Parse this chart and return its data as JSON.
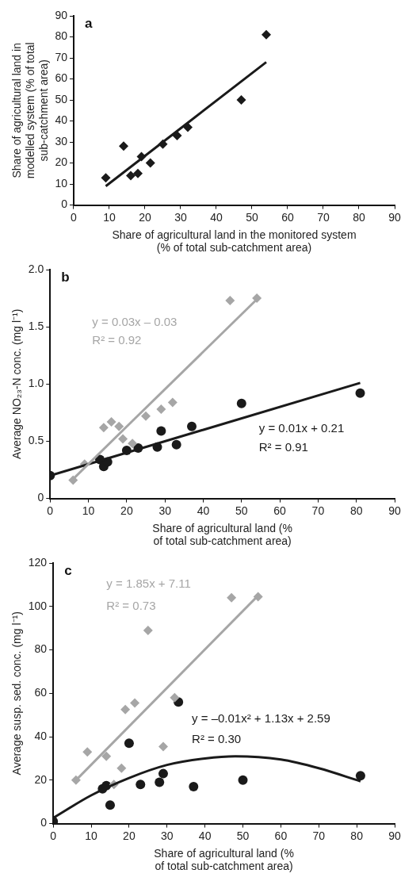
{
  "chart_data": [
    {
      "type": "scatter",
      "title": "a",
      "xlabel": "Share of agricultural land in the monitored system (% of total sub-catchment area)",
      "ylabel": "Share of agricultural land in modelled system (% of total sub-catchment area)",
      "xlim": [
        0,
        90
      ],
      "xticks": [
        0,
        10,
        20,
        30,
        40,
        50,
        60,
        70,
        80,
        90
      ],
      "ylim": [
        0,
        90
      ],
      "yticks": [
        0,
        10,
        20,
        30,
        40,
        50,
        60,
        70,
        80,
        90
      ],
      "grid": false,
      "legend": false,
      "series": [
        {
          "marker": "diamond",
          "color": "#1a1a1a",
          "x": [
            9,
            14,
            16,
            18,
            19,
            21.5,
            25,
            29,
            32,
            47,
            54
          ],
          "values": [
            13,
            28,
            14,
            15,
            23,
            20,
            29,
            33,
            37,
            50,
            81
          ]
        },
        {
          "type": "line",
          "marker": "none",
          "color": "#1a1a1a",
          "x": [
            9,
            54
          ],
          "values": [
            9,
            68
          ]
        }
      ]
    },
    {
      "type": "scatter",
      "title": "b",
      "xlabel": "Share of agricultural land (% of total sub-catchment area)",
      "ylabel": "Average NO₂₃-N conc. (mg l⁻¹)",
      "xlim": [
        0,
        90
      ],
      "xticks": [
        0,
        10,
        20,
        30,
        40,
        50,
        60,
        70,
        80,
        90
      ],
      "ylim": [
        0,
        2
      ],
      "yticks": [
        0,
        0.5,
        {
          "value": 1,
          "label": "1.0"
        },
        1.5,
        {
          "value": 2,
          "label": "2.0"
        }
      ],
      "grid": false,
      "legend": false,
      "annotations": [
        "y = 0.03x – 0.03",
        "R² = 0.92",
        "y = 0.01x + 0.21",
        "R² = 0.91"
      ],
      "series": [
        {
          "type": "line",
          "marker": "none",
          "color": "#a6a6a6",
          "x": [
            6,
            54
          ],
          "values": [
            0.17,
            1.74
          ]
        },
        {
          "type": "line",
          "marker": "none",
          "color": "#1a1a1a",
          "x": [
            0,
            81
          ],
          "values": [
            0.2,
            1.01
          ]
        },
        {
          "marker": "diamond",
          "color": "#a6a6a6",
          "x": [
            6,
            9,
            14,
            16,
            18,
            19,
            21.5,
            25,
            29,
            32,
            47,
            54
          ],
          "values": [
            0.16,
            0.3,
            0.62,
            0.67,
            0.63,
            0.52,
            0.48,
            0.72,
            0.78,
            0.84,
            1.73,
            1.75
          ]
        },
        {
          "marker": "circle",
          "color": "#1a1a1a",
          "x": [
            0,
            13,
            14,
            15,
            20,
            23,
            28,
            29,
            33,
            37,
            50,
            81
          ],
          "values": [
            0.2,
            0.34,
            0.28,
            0.32,
            0.42,
            0.44,
            0.45,
            0.59,
            0.47,
            0.63,
            0.83,
            0.92
          ]
        }
      ]
    },
    {
      "type": "scatter",
      "title": "c",
      "xlabel": "Share of agricultural land (% of total sub-catchment area)",
      "ylabel": "Average susp. sed. conc. (mg l⁻¹)",
      "xlim": [
        0,
        90
      ],
      "xticks": [
        0,
        10,
        20,
        30,
        40,
        50,
        60,
        70,
        80,
        90
      ],
      "ylim": [
        0,
        120
      ],
      "yticks": [
        0,
        20,
        40,
        60,
        80,
        100,
        120
      ],
      "grid": false,
      "legend": false,
      "annotations": [
        "y = 1.85x + 7.11",
        "R² = 0.73",
        "y = –0.01x² + 1.13x + 2.59",
        "R² = 0.30"
      ],
      "series": [
        {
          "type": "line",
          "marker": "none",
          "color": "#a6a6a6",
          "x": [
            6,
            54
          ],
          "values": [
            20,
            105
          ]
        },
        {
          "type": "line",
          "marker": "none",
          "color": "#1a1a1a",
          "x": [
            0,
            10,
            20,
            30,
            40,
            48,
            60,
            70,
            81
          ],
          "values": [
            2.6,
            13,
            21,
            27,
            30,
            31,
            29.5,
            25.5,
            19.5
          ]
        },
        {
          "marker": "diamond",
          "color": "#a6a6a6",
          "x": [
            6,
            9,
            14,
            16,
            18,
            19,
            21.5,
            25,
            29,
            32,
            47,
            54
          ],
          "values": [
            20,
            33,
            31,
            18,
            25.5,
            52.5,
            55.5,
            89,
            35.5,
            58,
            104,
            104.5
          ]
        },
        {
          "marker": "circle",
          "color": "#1a1a1a",
          "x": [
            0,
            13,
            14,
            15,
            20,
            23,
            28,
            29,
            33,
            37,
            50,
            81
          ],
          "values": [
            1,
            16,
            17.5,
            8.5,
            37,
            18,
            19,
            23,
            56,
            17,
            20,
            22
          ]
        }
      ]
    }
  ]
}
